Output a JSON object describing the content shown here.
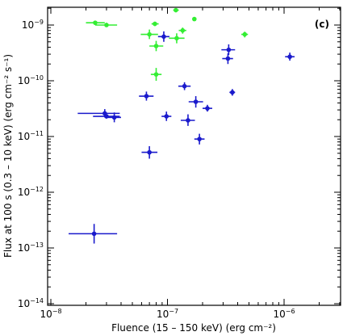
{
  "chart_data": {
    "type": "scatter",
    "panel_label": "(c)",
    "xlabel": "Fluence (15 – 150 keV) (erg cm⁻²)",
    "ylabel": "Flux at 100 s (0.3 – 10 keV) (erg cm⁻² s⁻¹)",
    "x_scale": "log",
    "y_scale": "log",
    "xlim": [
      1e-08,
      4e-06
    ],
    "ylim": [
      1e-14,
      2e-09
    ],
    "x_ticks": [
      {
        "value": 1e-08,
        "base": "10",
        "exp": "−8"
      },
      {
        "value": 1e-07,
        "base": "10",
        "exp": "−7"
      },
      {
        "value": 1e-06,
        "base": "10",
        "exp": "−6"
      }
    ],
    "y_ticks": [
      {
        "value": 1e-14,
        "base": "10",
        "exp": "−14"
      },
      {
        "value": 1e-13,
        "base": "10",
        "exp": "−13"
      },
      {
        "value": 1e-12,
        "base": "10",
        "exp": "−12"
      },
      {
        "value": 1e-11,
        "base": "10",
        "exp": "−11"
      },
      {
        "value": 1e-10,
        "base": "10",
        "exp": "−10"
      },
      {
        "value": 1e-09,
        "base": "10",
        "exp": "−9"
      }
    ],
    "colors": {
      "green_series": "#33ee33",
      "blue_series": "#1a1acc"
    },
    "series": [
      {
        "color": "#33ee33",
        "points": [
          {
            "x": 2.4e-08,
            "y": 1.1e-09,
            "xerr": [
              2e-08,
              2.9e-08
            ],
            "yerr": [
              1e-09,
              1.2e-09
            ]
          },
          {
            "x": 3e-08,
            "y": 1e-09,
            "xerr": [
              2.4e-08,
              3.7e-08
            ],
            "yerr": [
              9.2e-10,
              1.1e-09
            ]
          },
          {
            "x": 7.8e-08,
            "y": 1.05e-09,
            "xerr": [
              7.3e-08,
              8.4e-08
            ],
            "yerr": [
              9.6e-10,
              1.15e-09
            ]
          },
          {
            "x": 1.18e-07,
            "y": 1.85e-09,
            "xerr": [
              1.12e-07,
              1.25e-07
            ],
            "yerr": [
              1.7e-09,
              2e-09
            ]
          },
          {
            "x": 1.7e-07,
            "y": 1.28e-09,
            "xerr": [
              1.66e-07,
              1.74e-07
            ],
            "yerr": [
              1.22e-09,
              1.34e-09
            ]
          },
          {
            "x": 7e-08,
            "y": 6.8e-10,
            "xerr": [
              5.9e-08,
              8.3e-08
            ],
            "yerr": [
              5.6e-10,
              8.3e-10
            ]
          },
          {
            "x": 1.2e-07,
            "y": 5.8e-10,
            "xerr": [
              1.03e-07,
              1.4e-07
            ],
            "yerr": [
              4.7e-10,
              7.1e-10
            ]
          },
          {
            "x": 1.35e-07,
            "y": 8e-10,
            "xerr": [
              1.25e-07,
              1.45e-07
            ],
            "yerr": [
              7e-10,
              9e-10
            ]
          },
          {
            "x": 8e-08,
            "y": 4.2e-10,
            "xerr": [
              7e-08,
              9.2e-08
            ],
            "yerr": [
              3.4e-10,
              5.2e-10
            ]
          },
          {
            "x": 4.6e-07,
            "y": 6.8e-10,
            "xerr": [
              4.3e-07,
              4.9e-07
            ],
            "yerr": [
              6e-10,
              7.6e-10
            ]
          },
          {
            "x": 8e-08,
            "y": 1.3e-10,
            "xerr": [
              7.2e-08,
              8.9e-08
            ],
            "yerr": [
              1e-10,
              1.7e-10
            ]
          }
        ]
      },
      {
        "color": "#1a1acc",
        "points": [
          {
            "x": 9.3e-08,
            "y": 6.2e-10,
            "xerr": [
              8.3e-08,
              1.04e-07
            ],
            "yerr": [
              5e-10,
              7.7e-10
            ]
          },
          {
            "x": 3.35e-07,
            "y": 3.6e-10,
            "xerr": [
              2.9e-07,
              3.8e-07
            ],
            "yerr": [
              2.9e-10,
              4.5e-10
            ]
          },
          {
            "x": 3.3e-07,
            "y": 2.5e-10,
            "xerr": [
              2.95e-07,
              3.65e-07
            ],
            "yerr": [
              2e-10,
              3.1e-10
            ]
          },
          {
            "x": 1.12e-06,
            "y": 2.7e-10,
            "xerr": [
              1.02e-06,
              1.23e-06
            ],
            "yerr": [
              2.3e-10,
              3.2e-10
            ]
          },
          {
            "x": 1.4e-07,
            "y": 8e-11,
            "xerr": [
              1.24e-07,
              1.58e-07
            ],
            "yerr": [
              6.8e-11,
              9.4e-11
            ]
          },
          {
            "x": 3.6e-07,
            "y": 6.2e-11,
            "xerr": [
              3.4e-07,
              3.8e-07
            ],
            "yerr": [
              5.4e-11,
              7.1e-11
            ]
          },
          {
            "x": 6.6e-08,
            "y": 5.3e-11,
            "xerr": [
              5.7e-08,
              7.6e-08
            ],
            "yerr": [
              4.4e-11,
              6.4e-11
            ]
          },
          {
            "x": 1.75e-07,
            "y": 4.2e-11,
            "xerr": [
              1.52e-07,
              2.02e-07
            ],
            "yerr": [
              3.3e-11,
              5.3e-11
            ]
          },
          {
            "x": 2.2e-07,
            "y": 3.2e-11,
            "xerr": [
              2e-07,
              2.42e-07
            ],
            "yerr": [
              2.8e-11,
              3.7e-11
            ]
          },
          {
            "x": 2.9e-08,
            "y": 2.6e-11,
            "xerr": [
              1.7e-08,
              3.9e-08
            ],
            "yerr": [
              2.2e-11,
              3.1e-11
            ]
          },
          {
            "x": 3.5e-08,
            "y": 2.2e-11,
            "xerr": [
              3.1e-08,
              4e-08
            ],
            "yerr": [
              1.8e-11,
              2.7e-11
            ]
          },
          {
            "x": 3e-08,
            "y": 2.3e-11,
            "xerr": [
              2.3e-08,
              3.9e-08
            ],
            "yerr": [
              2.1e-11,
              2.5e-11
            ]
          },
          {
            "x": 9.8e-08,
            "y": 2.3e-11,
            "xerr": [
              8.9e-08,
              1.08e-07
            ],
            "yerr": [
              1.9e-11,
              2.8e-11
            ]
          },
          {
            "x": 1.5e-07,
            "y": 1.95e-11,
            "xerr": [
              1.3e-07,
              1.72e-07
            ],
            "yerr": [
              1.55e-11,
              2.5e-11
            ]
          },
          {
            "x": 1.88e-07,
            "y": 9e-12,
            "xerr": [
              1.7e-07,
              2.08e-07
            ],
            "yerr": [
              7.2e-12,
              1.12e-11
            ]
          },
          {
            "x": 7e-08,
            "y": 5.2e-12,
            "xerr": [
              6e-08,
              8.2e-08
            ],
            "yerr": [
              4e-12,
              6.7e-12
            ]
          },
          {
            "x": 2.35e-08,
            "y": 1.8e-13,
            "xerr": [
              1.42e-08,
              3.7e-08
            ],
            "yerr": [
              1.2e-13,
              2.7e-13
            ]
          }
        ]
      }
    ]
  }
}
